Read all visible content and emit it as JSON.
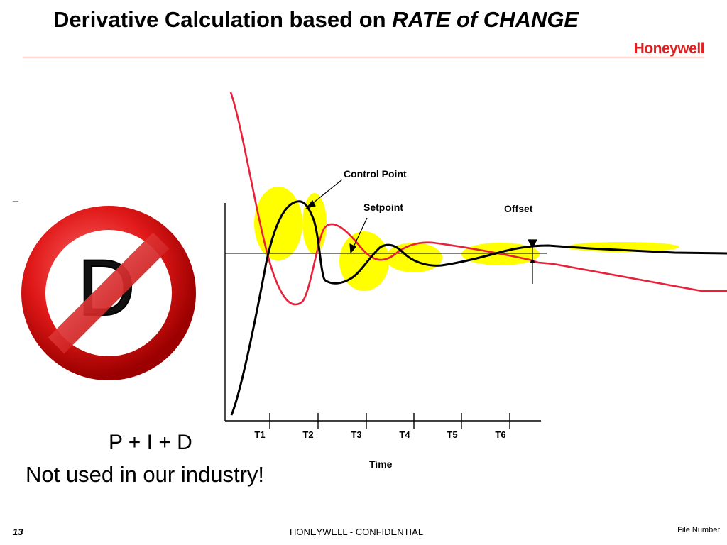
{
  "slide": {
    "title": "Derivative Calculation based on ",
    "title_emphasis": "RATE of CHANGE",
    "logo_text": "Honeywell",
    "sign_letter": "D",
    "formula": "P + I + D",
    "note": "Not used in our industry!",
    "page_number": "13",
    "confidential": "HONEYWELL - CONFIDENTIAL",
    "file_number": "File Number"
  },
  "diagram": {
    "labels": {
      "control_point": "Control Point",
      "setpoint": "Setpoint",
      "offset": "Offset",
      "time": "Time"
    },
    "ticks": [
      "T1",
      "T2",
      "T3",
      "T4",
      "T5",
      "T6"
    ],
    "colors": {
      "control_point": "#000000",
      "setpoint": "#e8203a",
      "highlight": "#ffff00",
      "accent": "#d62a2a"
    }
  }
}
